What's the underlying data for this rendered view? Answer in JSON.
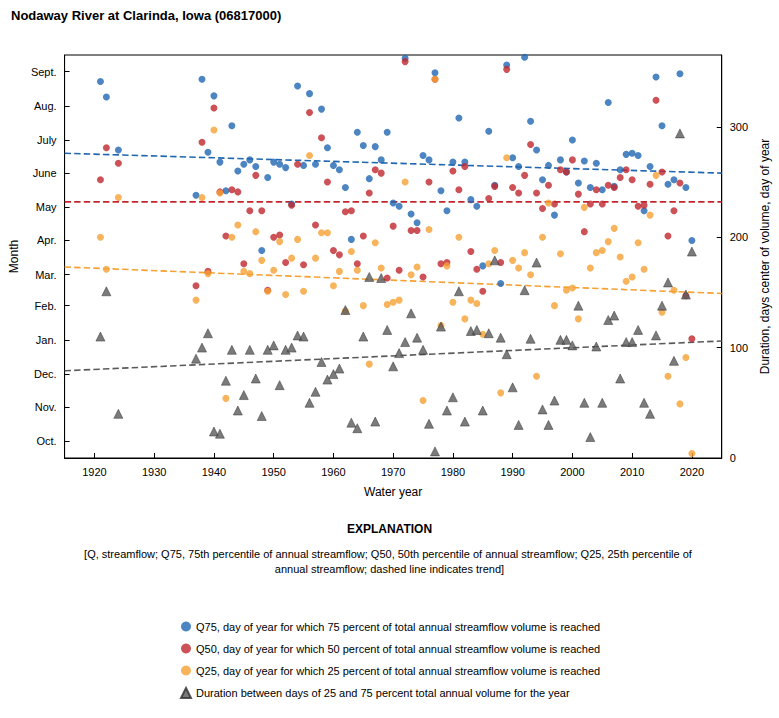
{
  "chart_data": {
    "type": "scatter",
    "title": "Nodaway River at Clarinda, Iowa (06817000)",
    "x_label": "Water year",
    "y_label": "Month",
    "y2_label": "Duration, days center of volume, day of year",
    "explanation_title": "EXPLANATION",
    "note": "[Q, streamflow; Q75, 75th percentile of annual streamflow; Q50, 50th percentile of annual streamflow; Q25, 25th percentile of annual streamflow; dashed line indicates trend]",
    "xlim": [
      1915,
      2025
    ],
    "xticks": [
      1920,
      1930,
      1940,
      1950,
      1960,
      1970,
      1980,
      1990,
      2000,
      2010,
      2020
    ],
    "ylim": [
      0,
      365
    ],
    "yticks": [
      {
        "value": 15,
        "label": "Oct."
      },
      {
        "value": 46,
        "label": "Nov."
      },
      {
        "value": 76,
        "label": "Dec."
      },
      {
        "value": 107,
        "label": "Jan."
      },
      {
        "value": 138,
        "label": "Feb."
      },
      {
        "value": 166,
        "label": "Mar."
      },
      {
        "value": 197,
        "label": "Apr."
      },
      {
        "value": 227,
        "label": "May"
      },
      {
        "value": 258,
        "label": "June"
      },
      {
        "value": 288,
        "label": "July"
      },
      {
        "value": 319,
        "label": "Aug."
      },
      {
        "value": 350,
        "label": "Sept."
      }
    ],
    "y2lim": [
      0,
      365
    ],
    "y2ticks": [
      0,
      100,
      200,
      300
    ],
    "grid": false,
    "legend": "bottom",
    "x": [
      1921,
      1922,
      1924,
      1937,
      1938,
      1939,
      1940,
      1941,
      1942,
      1943,
      1944,
      1945,
      1946,
      1947,
      1948,
      1949,
      1950,
      1951,
      1952,
      1953,
      1954,
      1955,
      1956,
      1957,
      1958,
      1959,
      1960,
      1961,
      1962,
      1963,
      1964,
      1965,
      1966,
      1967,
      1968,
      1969,
      1970,
      1971,
      1972,
      1973,
      1974,
      1975,
      1976,
      1977,
      1978,
      1979,
      1980,
      1981,
      1982,
      1983,
      1984,
      1985,
      1986,
      1987,
      1988,
      1989,
      1990,
      1991,
      1992,
      1993,
      1994,
      1995,
      1996,
      1997,
      1998,
      1999,
      2000,
      2001,
      2002,
      2003,
      2004,
      2005,
      2006,
      2007,
      2008,
      2009,
      2010,
      2011,
      2012,
      2013,
      2014,
      2015,
      2016,
      2017,
      2018,
      2019,
      2020
    ],
    "series": [
      {
        "name": "Q75, day of year for which 75 percent of total annual streamflow volume is reached",
        "color": "#1f67b1",
        "marker": "circle",
        "values": [
          341,
          327,
          279,
          238,
          343,
          277,
          328,
          268,
          242,
          301,
          260,
          266,
          270,
          264,
          188,
          254,
          268,
          266,
          263,
          230,
          337,
          265,
          330,
          266,
          316,
          281,
          265,
          261,
          245,
          198,
          295,
          283,
          253,
          282,
          270,
          295,
          231,
          228,
          362,
          221,
          213,
          274,
          270,
          349,
          242,
          224,
          268,
          308,
          268,
          234,
          228,
          174,
          296,
          247,
          158,
          356,
          272,
          264,
          363,
          305,
          279,
          252,
          265,
          220,
          270,
          259,
          288,
          249,
          269,
          245,
          267,
          243,
          322,
          246,
          261,
          275,
          276,
          274,
          224,
          264,
          345,
          301,
          248,
          252,
          348,
          245,
          197
        ],
        "trend": {
          "x": [
            1915,
            2025
          ],
          "values": [
            276,
            258
          ],
          "line_style": "dashed"
        }
      },
      {
        "name": "Q50, day of year for which 50 percent of total annual streamflow volume is reached",
        "color": "#c1272d",
        "marker": "circle",
        "values": [
          252,
          281,
          267,
          156,
          286,
          169,
          317,
          241,
          201,
          243,
          241,
          176,
          224,
          256,
          224,
          152,
          200,
          202,
          177,
          229,
          266,
          175,
          313,
          211,
          290,
          250,
          188,
          184,
          223,
          224,
          176,
          201,
          240,
          261,
          258,
          163,
          210,
          170,
          359,
          206,
          206,
          164,
          250,
          343,
          176,
          177,
          260,
          243,
          264,
          187,
          171,
          151,
          235,
          246,
          177,
          352,
          245,
          240,
          256,
          284,
          240,
          226,
          247,
          230,
          261,
          259,
          270,
          239,
          205,
          230,
          243,
          230,
          247,
          245,
          254,
          261,
          252,
          228,
          229,
          248,
          324,
          259,
          201,
          224,
          249,
          147,
          108
        ],
        "trend": {
          "x": [
            1915,
            2025
          ],
          "values": [
            232,
            232
          ],
          "line_style": "dashed"
        }
      },
      {
        "name": "Q25, day of year for which 25 percent of total annual streamflow volume is reached",
        "color": "#f6a133",
        "marker": "circle",
        "values": [
          200,
          171,
          236,
          143,
          236,
          167,
          297,
          240,
          54,
          200,
          211,
          169,
          167,
          205,
          179,
          151,
          170,
          196,
          148,
          181,
          198,
          151,
          274,
          181,
          204,
          204,
          156,
          169,
          133,
          187,
          170,
          138,
          85,
          195,
          172,
          139,
          141,
          143,
          250,
          166,
          173,
          52,
          207,
          343,
          120,
          174,
          141,
          200,
          126,
          143,
          140,
          112,
          176,
          188,
          59,
          272,
          179,
          172,
          186,
          166,
          74,
          200,
          231,
          138,
          185,
          152,
          154,
          126,
          227,
          172,
          186,
          188,
          196,
          208,
          182,
          160,
          164,
          195,
          171,
          220,
          256,
          132,
          74,
          152,
          49,
          91,
          4
        ],
        "trend": {
          "x": [
            1915,
            2025
          ],
          "values": [
            173,
            149
          ],
          "line_style": "dashed"
        }
      },
      {
        "name": "Duration between days of 25 and 75 percent total annual volume for the year",
        "color": "#5a5a5a",
        "marker": "triangle",
        "axis": "y2",
        "values": [
          110,
          151,
          40,
          90,
          100,
          113,
          24,
          22,
          70,
          98,
          43,
          57,
          98,
          72,
          38,
          98,
          102,
          66,
          98,
          100,
          111,
          110,
          50,
          60,
          87,
          71,
          76,
          81,
          134,
          32,
          27,
          110,
          164,
          33,
          163,
          116,
          83,
          95,
          105,
          131,
          109,
          98,
          31,
          6,
          119,
          43,
          55,
          151,
          33,
          115,
          116,
          43,
          113,
          179,
          109,
          94,
          64,
          30,
          152,
          108,
          177,
          44,
          30,
          52,
          107,
          107,
          102,
          138,
          50,
          19,
          101,
          50,
          125,
          129,
          72,
          105,
          105,
          116,
          50,
          40,
          111,
          138,
          159,
          88,
          294,
          148,
          187
        ],
        "trend": {
          "x": [
            1915,
            2025
          ],
          "values": [
            79,
            106
          ],
          "line_style": "dashed"
        }
      }
    ]
  }
}
